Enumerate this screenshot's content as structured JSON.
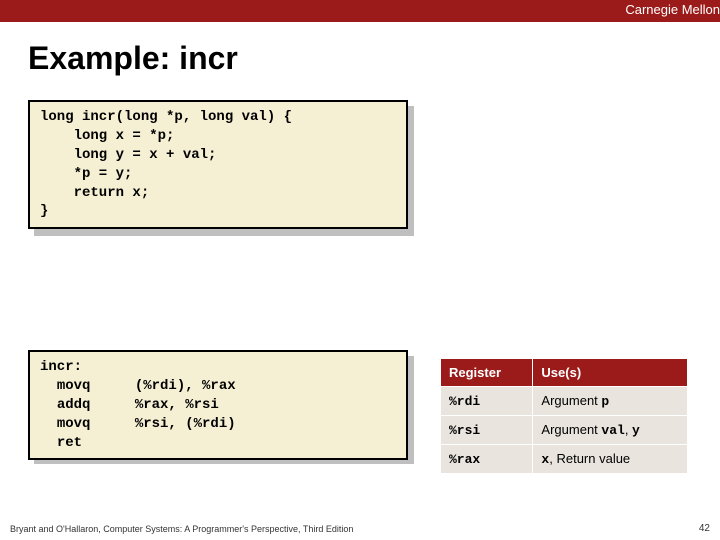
{
  "header": {
    "brand": "Carnegie Mellon"
  },
  "title": "Example: incr",
  "c_code": "long incr(long *p, long val) {\n    long x = *p;\n    long y = x + val;\n    *p = y;\n    return x;\n}",
  "asm": {
    "label": "incr:",
    "lines": [
      {
        "mnemonic": "movq",
        "operands": "(%rdi), %rax"
      },
      {
        "mnemonic": "addq",
        "operands": "%rax, %rsi"
      },
      {
        "mnemonic": "movq",
        "operands": "%rsi, (%rdi)"
      },
      {
        "mnemonic": "ret",
        "operands": ""
      }
    ]
  },
  "reg_table": {
    "headers": [
      "Register",
      "Use(s)"
    ],
    "rows": [
      {
        "reg": "%rdi",
        "use_prefix": "Argument ",
        "use_code": "p",
        "use_suffix": ""
      },
      {
        "reg": "%rsi",
        "use_prefix": "Argument ",
        "use_code": "val",
        "use_suffix": ", ",
        "use_code2": "y"
      },
      {
        "reg": "%rax",
        "use_prefix": "",
        "use_code": "x",
        "use_suffix": ", Return value"
      }
    ]
  },
  "footer": {
    "citation": "Bryant and O'Hallaron, Computer Systems: A Programmer's Perspective, Third Edition",
    "page": "42"
  },
  "colors": {
    "brand_red": "#9b1b1b",
    "code_bg": "#f5f0d4",
    "shadow": "#bfbfbf",
    "table_cell": "#e9e5de"
  }
}
